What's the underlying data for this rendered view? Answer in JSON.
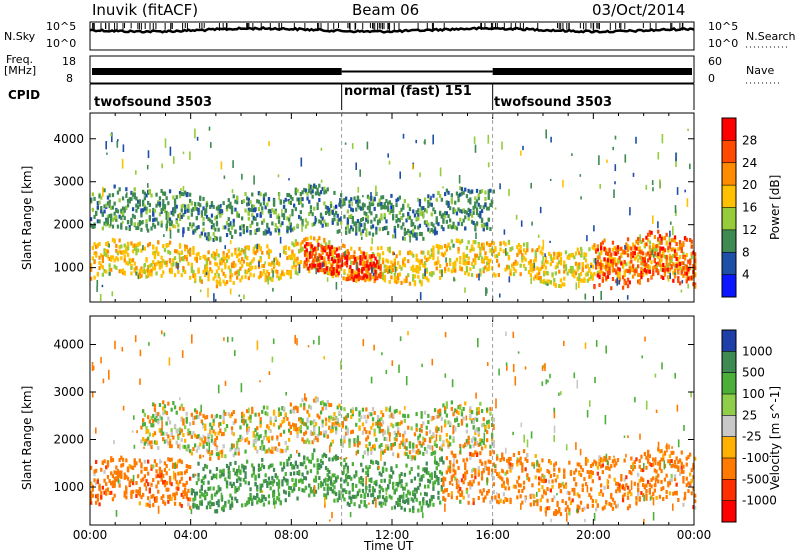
{
  "header": {
    "left": "Inuvik (fitACF)",
    "center": "Beam 06",
    "right": "03/Oct/2014"
  },
  "noise_panel": {
    "left_label": "N.Sky",
    "left_ticks": [
      "10^5",
      "10^0"
    ],
    "right_label": "N.Search",
    "right_ticks": [
      "10^5",
      "10^0"
    ]
  },
  "freq_panel": {
    "left_label_1": "Freq.",
    "left_label_2": "[MHz]",
    "left_ticks": [
      "18",
      "8"
    ],
    "right_label": "Nave",
    "right_ticks": [
      "60",
      "0"
    ]
  },
  "cpid": {
    "label": "CPID",
    "segments": [
      {
        "name": "twofsound 3503",
        "start_hr": 0,
        "end_hr": 10
      },
      {
        "name": "normal (fast) 151",
        "start_hr": 10,
        "end_hr": 16
      },
      {
        "name": "twofsound 3503",
        "start_hr": 16,
        "end_hr": 24
      }
    ]
  },
  "power_panel": {
    "ylabel": "Slant Range [km]",
    "yticks": [
      "4000",
      "3000",
      "2000",
      "1000"
    ],
    "cbar_label": "Power [dB]",
    "cbar_ticks": [
      "28",
      "24",
      "20",
      "16",
      "12",
      "8",
      "4"
    ],
    "cbar_colors": [
      "#ff0000",
      "#ff4a00",
      "#ff8c00",
      "#ffc000",
      "#96cc3a",
      "#3e8a52",
      "#1e4fa8",
      "#0a16ff"
    ]
  },
  "velocity_panel": {
    "ylabel": "Slant Range [km]",
    "yticks": [
      "4000",
      "3000",
      "2000",
      "1000"
    ],
    "cbar_label": "Velocity [m s^-1]",
    "cbar_ticks": [
      "1000",
      "500",
      "100",
      "25",
      "-25",
      "-100",
      "-500",
      "-1000"
    ],
    "cbar_colors": [
      "#1e3ea8",
      "#3e8a52",
      "#4caf3a",
      "#8fce4a",
      "#c8c8c8",
      "#ffb000",
      "#ff7a00",
      "#ff3000",
      "#ff0000"
    ]
  },
  "xaxis": {
    "ticks": [
      "00:00",
      "04:00",
      "08:00",
      "12:00",
      "16:00",
      "20:00",
      "00:00"
    ],
    "label": "Time UT"
  },
  "chart_data": {
    "type": "heatmap",
    "title": "Inuvik (fitACF) Beam 06 03/Oct/2014",
    "xlabel": "Time UT",
    "ylabel": "Slant Range [km]",
    "xlim_hours": [
      0,
      24
    ],
    "ylim_km": [
      200,
      4600
    ],
    "panels": [
      {
        "name": "Power",
        "units": "dB",
        "color_range": [
          0,
          32
        ],
        "bands": [
          {
            "t_start": 0,
            "t_end": 24,
            "range_km_center": 1100,
            "width_km": 500,
            "value": 18
          },
          {
            "t_start": 8.5,
            "t_end": 11.5,
            "range_km_center": 1050,
            "width_km": 400,
            "value": 28
          },
          {
            "t_start": 20,
            "t_end": 24,
            "range_km_center": 1100,
            "width_km": 700,
            "value": 26
          },
          {
            "t_start": 0,
            "t_end": 16,
            "range_km_center": 2250,
            "width_km": 600,
            "value": 10
          }
        ]
      },
      {
        "name": "Velocity",
        "units": "m s^-1",
        "color_range": [
          -1000,
          1000
        ],
        "bands": [
          {
            "t_start": 0,
            "t_end": 4,
            "range_km_center": 1000,
            "width_km": 600,
            "value": -200
          },
          {
            "t_start": 4,
            "t_end": 14,
            "range_km_center": 1100,
            "width_km": 600,
            "value": 300
          },
          {
            "t_start": 14,
            "t_end": 24,
            "range_km_center": 1100,
            "width_km": 700,
            "value": -150
          },
          {
            "t_start": 2,
            "t_end": 16,
            "range_km_center": 2200,
            "width_km": 600,
            "value": 0
          }
        ]
      }
    ]
  }
}
